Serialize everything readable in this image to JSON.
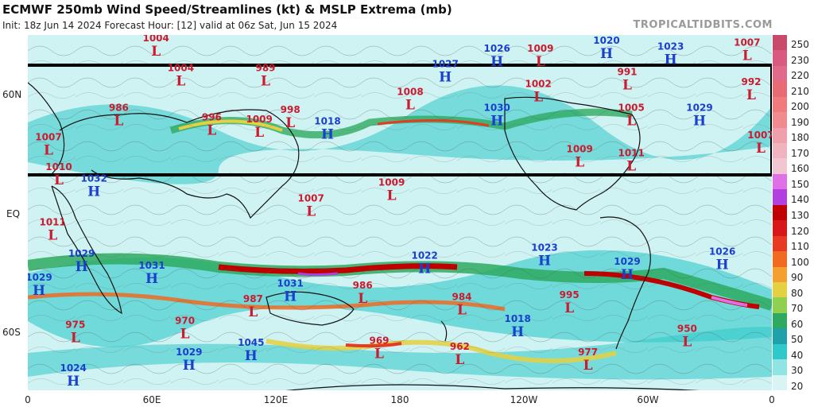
{
  "header": {
    "title": "ECMWF 250mb Wind Speed/Streamlines (kt) & MSLP Extrema (mb)",
    "subtitle": "Init: 18z Jun 14 2024   Forecast Hour: [12]   valid at 06z Sat, Jun 15 2024",
    "brand": "TROPICALTIDBITS.COM"
  },
  "axes": {
    "lat_labels": [
      "60N",
      "EQ",
      "60S"
    ],
    "lon_labels": [
      "0",
      "60E",
      "120E",
      "180",
      "120W",
      "60W",
      "0"
    ]
  },
  "colorbar": {
    "labels": [
      "250",
      "230",
      "220",
      "210",
      "200",
      "190",
      "180",
      "170",
      "160",
      "150",
      "140",
      "130",
      "120",
      "110",
      "100",
      "90",
      "80",
      "70",
      "60",
      "50",
      "40",
      "30",
      "20"
    ],
    "colors": [
      "#c84a6a",
      "#d85a80",
      "#e06a8a",
      "#e86a74",
      "#f07a7c",
      "#f08c90",
      "#f0a0aa",
      "#f0b4bf",
      "#f0c6d2",
      "#e070e6",
      "#b040e0",
      "#c00000",
      "#d81818",
      "#e63a22",
      "#f06a22",
      "#f4a030",
      "#e4d040",
      "#90d050",
      "#2eaa60",
      "#20a0a8",
      "#30c8c8",
      "#90e4e4",
      "#d8f4f4"
    ]
  },
  "map": {
    "highs": [
      {
        "value": "1026",
        "lon": -133,
        "lat": 76
      },
      {
        "value": "1027",
        "lon": -158,
        "lat": 68
      },
      {
        "value": "1020",
        "lon": -80,
        "lat": 80
      },
      {
        "value": "1023",
        "lon": -49,
        "lat": 77
      },
      {
        "value": "1030",
        "lon": -133,
        "lat": 46
      },
      {
        "value": "1018",
        "lon": 145,
        "lat": 39
      },
      {
        "value": "1029",
        "lon": -35,
        "lat": 46
      },
      {
        "value": "1032",
        "lon": 32,
        "lat": 10
      },
      {
        "value": "1029",
        "lon": 26,
        "lat": -28
      },
      {
        "value": "1031",
        "lon": 60,
        "lat": -34
      },
      {
        "value": "1029",
        "lon": 5,
        "lat": -40
      },
      {
        "value": "1022",
        "lon": -168,
        "lat": -29
      },
      {
        "value": "1023",
        "lon": -110,
        "lat": -25
      },
      {
        "value": "1029",
        "lon": -70,
        "lat": -32
      },
      {
        "value": "1026",
        "lon": -24,
        "lat": -27
      },
      {
        "value": "1031",
        "lon": 127,
        "lat": -43
      },
      {
        "value": "1018",
        "lon": -123,
        "lat": -61
      },
      {
        "value": "1029",
        "lon": 78,
        "lat": -78
      },
      {
        "value": "1045",
        "lon": 108,
        "lat": -73
      },
      {
        "value": "1024",
        "lon": 22,
        "lat": -86
      }
    ],
    "lows": [
      {
        "value": "1004",
        "lon": 62,
        "lat": 86
      },
      {
        "value": "1004",
        "lon": 74,
        "lat": 66
      },
      {
        "value": "989",
        "lon": 115,
        "lat": 66
      },
      {
        "value": "1008",
        "lon": -175,
        "lat": 54
      },
      {
        "value": "1009",
        "lon": -112,
        "lat": 76
      },
      {
        "value": "1007",
        "lon": -12,
        "lat": 79
      },
      {
        "value": "991",
        "lon": -70,
        "lat": 64
      },
      {
        "value": "1002",
        "lon": -113,
        "lat": 58
      },
      {
        "value": "992",
        "lon": -10,
        "lat": 59
      },
      {
        "value": "1005",
        "lon": -68,
        "lat": 46
      },
      {
        "value": "986",
        "lon": 44,
        "lat": 46
      },
      {
        "value": "996",
        "lon": 89,
        "lat": 41
      },
      {
        "value": "1009",
        "lon": 112,
        "lat": 40
      },
      {
        "value": "998",
        "lon": 127,
        "lat": 45
      },
      {
        "value": "1007",
        "lon": 10,
        "lat": 31
      },
      {
        "value": "1009",
        "lon": -93,
        "lat": 25
      },
      {
        "value": "1011",
        "lon": -68,
        "lat": 23
      },
      {
        "value": "1007",
        "lon": -2,
        "lat": 32
      },
      {
        "value": "1010",
        "lon": 15,
        "lat": 16
      },
      {
        "value": "1009",
        "lon": 176,
        "lat": 8
      },
      {
        "value": "1007",
        "lon": 137,
        "lat": 0
      },
      {
        "value": "1011",
        "lon": 12,
        "lat": -12
      },
      {
        "value": "987",
        "lon": 109,
        "lat": -51
      },
      {
        "value": "970",
        "lon": 76,
        "lat": -62
      },
      {
        "value": "975",
        "lon": 23,
        "lat": -64
      },
      {
        "value": "986",
        "lon": 162,
        "lat": -44
      },
      {
        "value": "984",
        "lon": -150,
        "lat": -50
      },
      {
        "value": "995",
        "lon": -98,
        "lat": -49
      },
      {
        "value": "969",
        "lon": 170,
        "lat": -72
      },
      {
        "value": "962",
        "lon": -151,
        "lat": -75
      },
      {
        "value": "977",
        "lon": -89,
        "lat": -78
      },
      {
        "value": "950",
        "lon": -41,
        "lat": -66
      }
    ]
  }
}
